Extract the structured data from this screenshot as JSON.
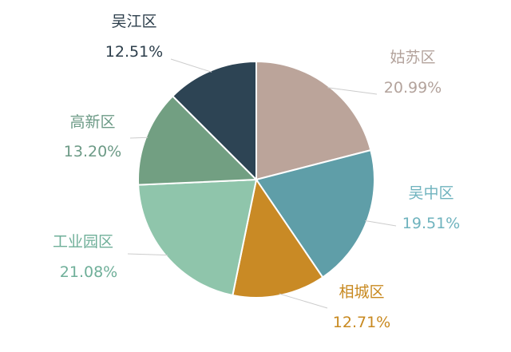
{
  "chart_data": {
    "type": "pie",
    "title": "",
    "slices": [
      {
        "label": "姑苏区",
        "value": 20.99,
        "percent_text": "20.99%",
        "color": "#bba49a",
        "label_color": "#b3a39c"
      },
      {
        "label": "吴中区",
        "value": 19.51,
        "percent_text": "19.51%",
        "color": "#5f9ea8",
        "label_color": "#6fb3be"
      },
      {
        "label": "相城区",
        "value": 12.71,
        "percent_text": "12.71%",
        "color": "#c98a25",
        "label_color": "#c8891f"
      },
      {
        "label": "工业园区",
        "value": 21.08,
        "percent_text": "21.08%",
        "color": "#8fc5ab",
        "label_color": "#6faf99"
      },
      {
        "label": "高新区",
        "value": 13.2,
        "percent_text": "13.20%",
        "color": "#729f82",
        "label_color": "#6c9a86"
      },
      {
        "label": "吴江区",
        "value": 12.51,
        "percent_text": "12.51%",
        "color": "#2d4454",
        "label_color": "#2c3e4b"
      }
    ],
    "start_angle": "12 o'clock",
    "direction": "clockwise",
    "legend": "none",
    "label_style": "outside with leader lines"
  }
}
